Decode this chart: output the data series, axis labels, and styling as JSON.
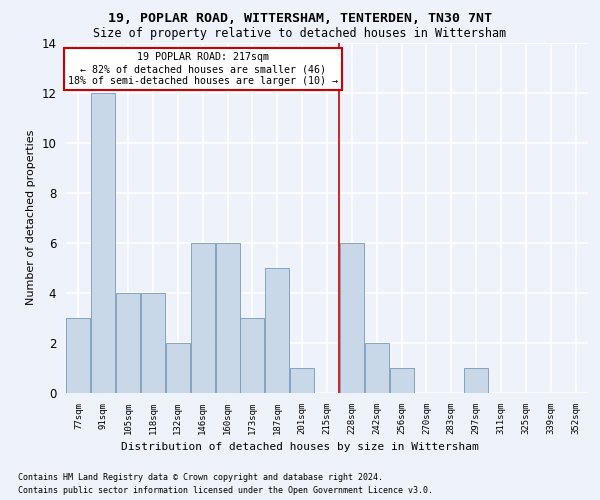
{
  "title1": "19, POPLAR ROAD, WITTERSHAM, TENTERDEN, TN30 7NT",
  "title2": "Size of property relative to detached houses in Wittersham",
  "xlabel": "Distribution of detached houses by size in Wittersham",
  "ylabel": "Number of detached properties",
  "footnote1": "Contains HM Land Registry data © Crown copyright and database right 2024.",
  "footnote2": "Contains public sector information licensed under the Open Government Licence v3.0.",
  "annotation_title": "19 POPLAR ROAD: 217sqm",
  "annotation_line1": "← 82% of detached houses are smaller (46)",
  "annotation_line2": "18% of semi-detached houses are larger (10) →",
  "bar_categories": [
    "77sqm",
    "91sqm",
    "105sqm",
    "118sqm",
    "132sqm",
    "146sqm",
    "160sqm",
    "173sqm",
    "187sqm",
    "201sqm",
    "215sqm",
    "228sqm",
    "242sqm",
    "256sqm",
    "270sqm",
    "283sqm",
    "297sqm",
    "311sqm",
    "325sqm",
    "339sqm",
    "352sqm"
  ],
  "bar_values": [
    3,
    12,
    4,
    4,
    2,
    6,
    6,
    3,
    5,
    1,
    0,
    6,
    2,
    1,
    0,
    0,
    1,
    0,
    0,
    0,
    0
  ],
  "bar_color": "#c8d8e8",
  "bar_edge_color": "#7799bb",
  "vline_color": "#cc0000",
  "vline_x": 10.5,
  "background_color": "#eef2fa",
  "grid_color": "#ffffff",
  "ylim": [
    0,
    14
  ],
  "yticks": [
    0,
    2,
    4,
    6,
    8,
    10,
    12,
    14
  ]
}
